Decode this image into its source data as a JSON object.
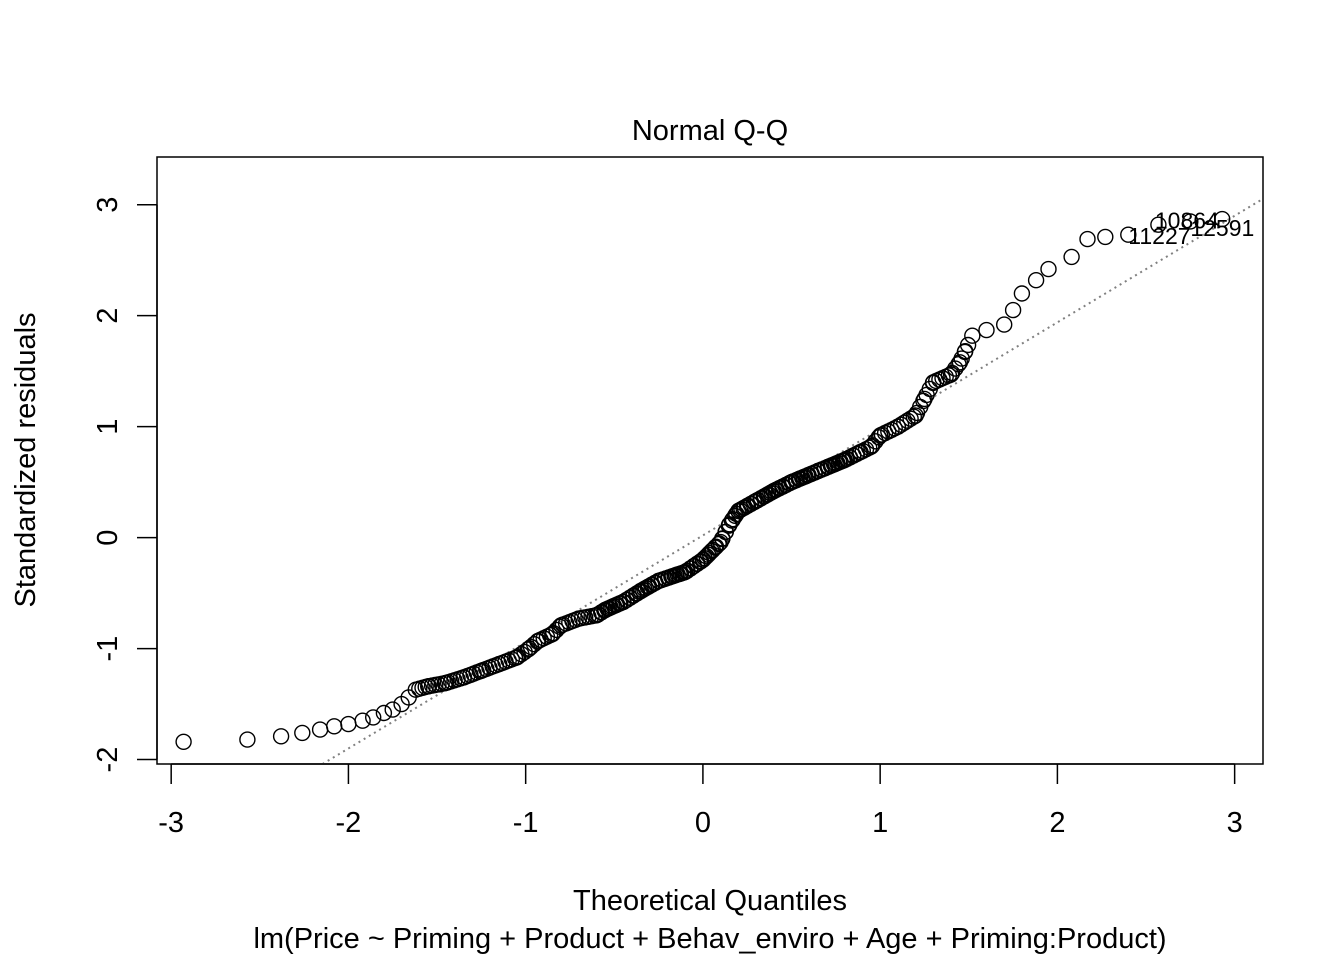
{
  "chart_data": {
    "type": "scatter",
    "title": "Normal Q-Q",
    "xlabel": "Theoretical Quantiles",
    "ylabel": "Standardized residuals",
    "subtitle": "lm(Price ~ Priming + Product + Behav_enviro + Age + Priming:Product)",
    "xlim": [
      -3.08,
      3.16
    ],
    "ylim": [
      -2.04,
      3.43
    ],
    "x_ticks": [
      -3,
      -2,
      -1,
      0,
      1,
      2,
      3
    ],
    "y_ticks": [
      -2,
      -1,
      0,
      1,
      2,
      3
    ],
    "x_tick_labels": [
      "-3",
      "-2",
      "-1",
      "0",
      "1",
      "2",
      "3"
    ],
    "y_tick_labels": [
      "-2",
      "-1",
      "0",
      "1",
      "2",
      "3"
    ],
    "grid": false,
    "reference_line": {
      "slope": 0.96,
      "intercept": 0.02,
      "style": "dotted",
      "color": "#808080"
    },
    "point_style": {
      "shape": "open-circle",
      "color": "#000000"
    },
    "annotations": [
      {
        "text": "10864",
        "x": 2.55,
        "y": 2.86
      },
      {
        "text": "11227",
        "x": 2.4,
        "y": 2.72
      },
      {
        "text": "12591",
        "x": 2.75,
        "y": 2.79
      }
    ],
    "anchors": [
      [
        -2.93,
        -1.84
      ],
      [
        -2.57,
        -1.82
      ],
      [
        -2.38,
        -1.79
      ],
      [
        -2.26,
        -1.76
      ],
      [
        -2.16,
        -1.73
      ],
      [
        -2.08,
        -1.7
      ],
      [
        -2.0,
        -1.68
      ],
      [
        -1.92,
        -1.65
      ],
      [
        -1.86,
        -1.62
      ],
      [
        -1.8,
        -1.58
      ],
      [
        -1.75,
        -1.55
      ],
      [
        -1.7,
        -1.5
      ],
      [
        -1.66,
        -1.44
      ],
      [
        -1.62,
        -1.37
      ],
      [
        -1.55,
        -1.34
      ],
      [
        -1.45,
        -1.31
      ],
      [
        -1.35,
        -1.26
      ],
      [
        -1.25,
        -1.2
      ],
      [
        -1.15,
        -1.14
      ],
      [
        -1.05,
        -1.08
      ],
      [
        -0.98,
        -1.0
      ],
      [
        -0.93,
        -0.93
      ],
      [
        -0.85,
        -0.87
      ],
      [
        -0.8,
        -0.79
      ],
      [
        -0.7,
        -0.73
      ],
      [
        -0.6,
        -0.7
      ],
      [
        -0.55,
        -0.65
      ],
      [
        -0.45,
        -0.58
      ],
      [
        -0.35,
        -0.48
      ],
      [
        -0.25,
        -0.39
      ],
      [
        -0.1,
        -0.31
      ],
      [
        0.0,
        -0.2
      ],
      [
        0.1,
        -0.04
      ],
      [
        0.15,
        0.12
      ],
      [
        0.2,
        0.24
      ],
      [
        0.3,
        0.33
      ],
      [
        0.4,
        0.42
      ],
      [
        0.5,
        0.5
      ],
      [
        0.65,
        0.6
      ],
      [
        0.8,
        0.7
      ],
      [
        0.95,
        0.82
      ],
      [
        1.0,
        0.92
      ],
      [
        1.1,
        1.0
      ],
      [
        1.2,
        1.1
      ],
      [
        1.25,
        1.25
      ],
      [
        1.3,
        1.4
      ],
      [
        1.4,
        1.47
      ],
      [
        1.45,
        1.58
      ],
      [
        1.48,
        1.68
      ],
      [
        1.52,
        1.82
      ],
      [
        1.6,
        1.87
      ],
      [
        1.7,
        1.92
      ],
      [
        1.75,
        2.05
      ],
      [
        1.8,
        2.2
      ],
      [
        1.88,
        2.32
      ],
      [
        1.95,
        2.42
      ],
      [
        2.08,
        2.53
      ],
      [
        2.17,
        2.69
      ],
      [
        2.27,
        2.71
      ],
      [
        2.4,
        2.73
      ],
      [
        2.57,
        2.82
      ],
      [
        2.75,
        2.85
      ],
      [
        2.93,
        2.87
      ]
    ]
  }
}
